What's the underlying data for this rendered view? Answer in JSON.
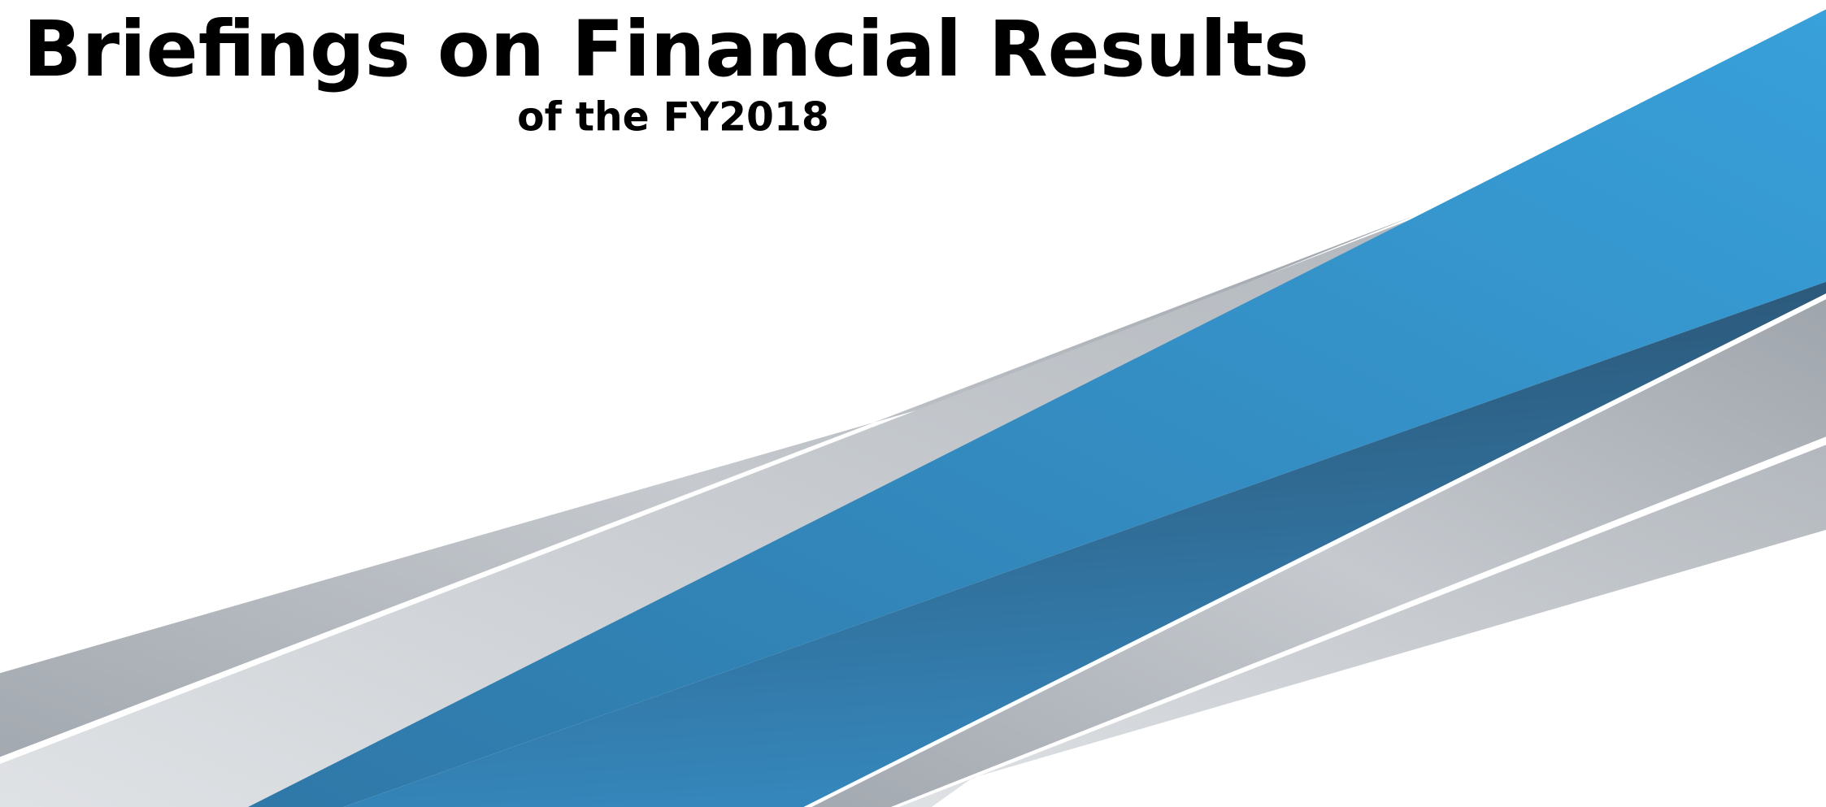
{
  "title": "Briefings on Financial Results",
  "subtitle": "of the FY2018"
}
